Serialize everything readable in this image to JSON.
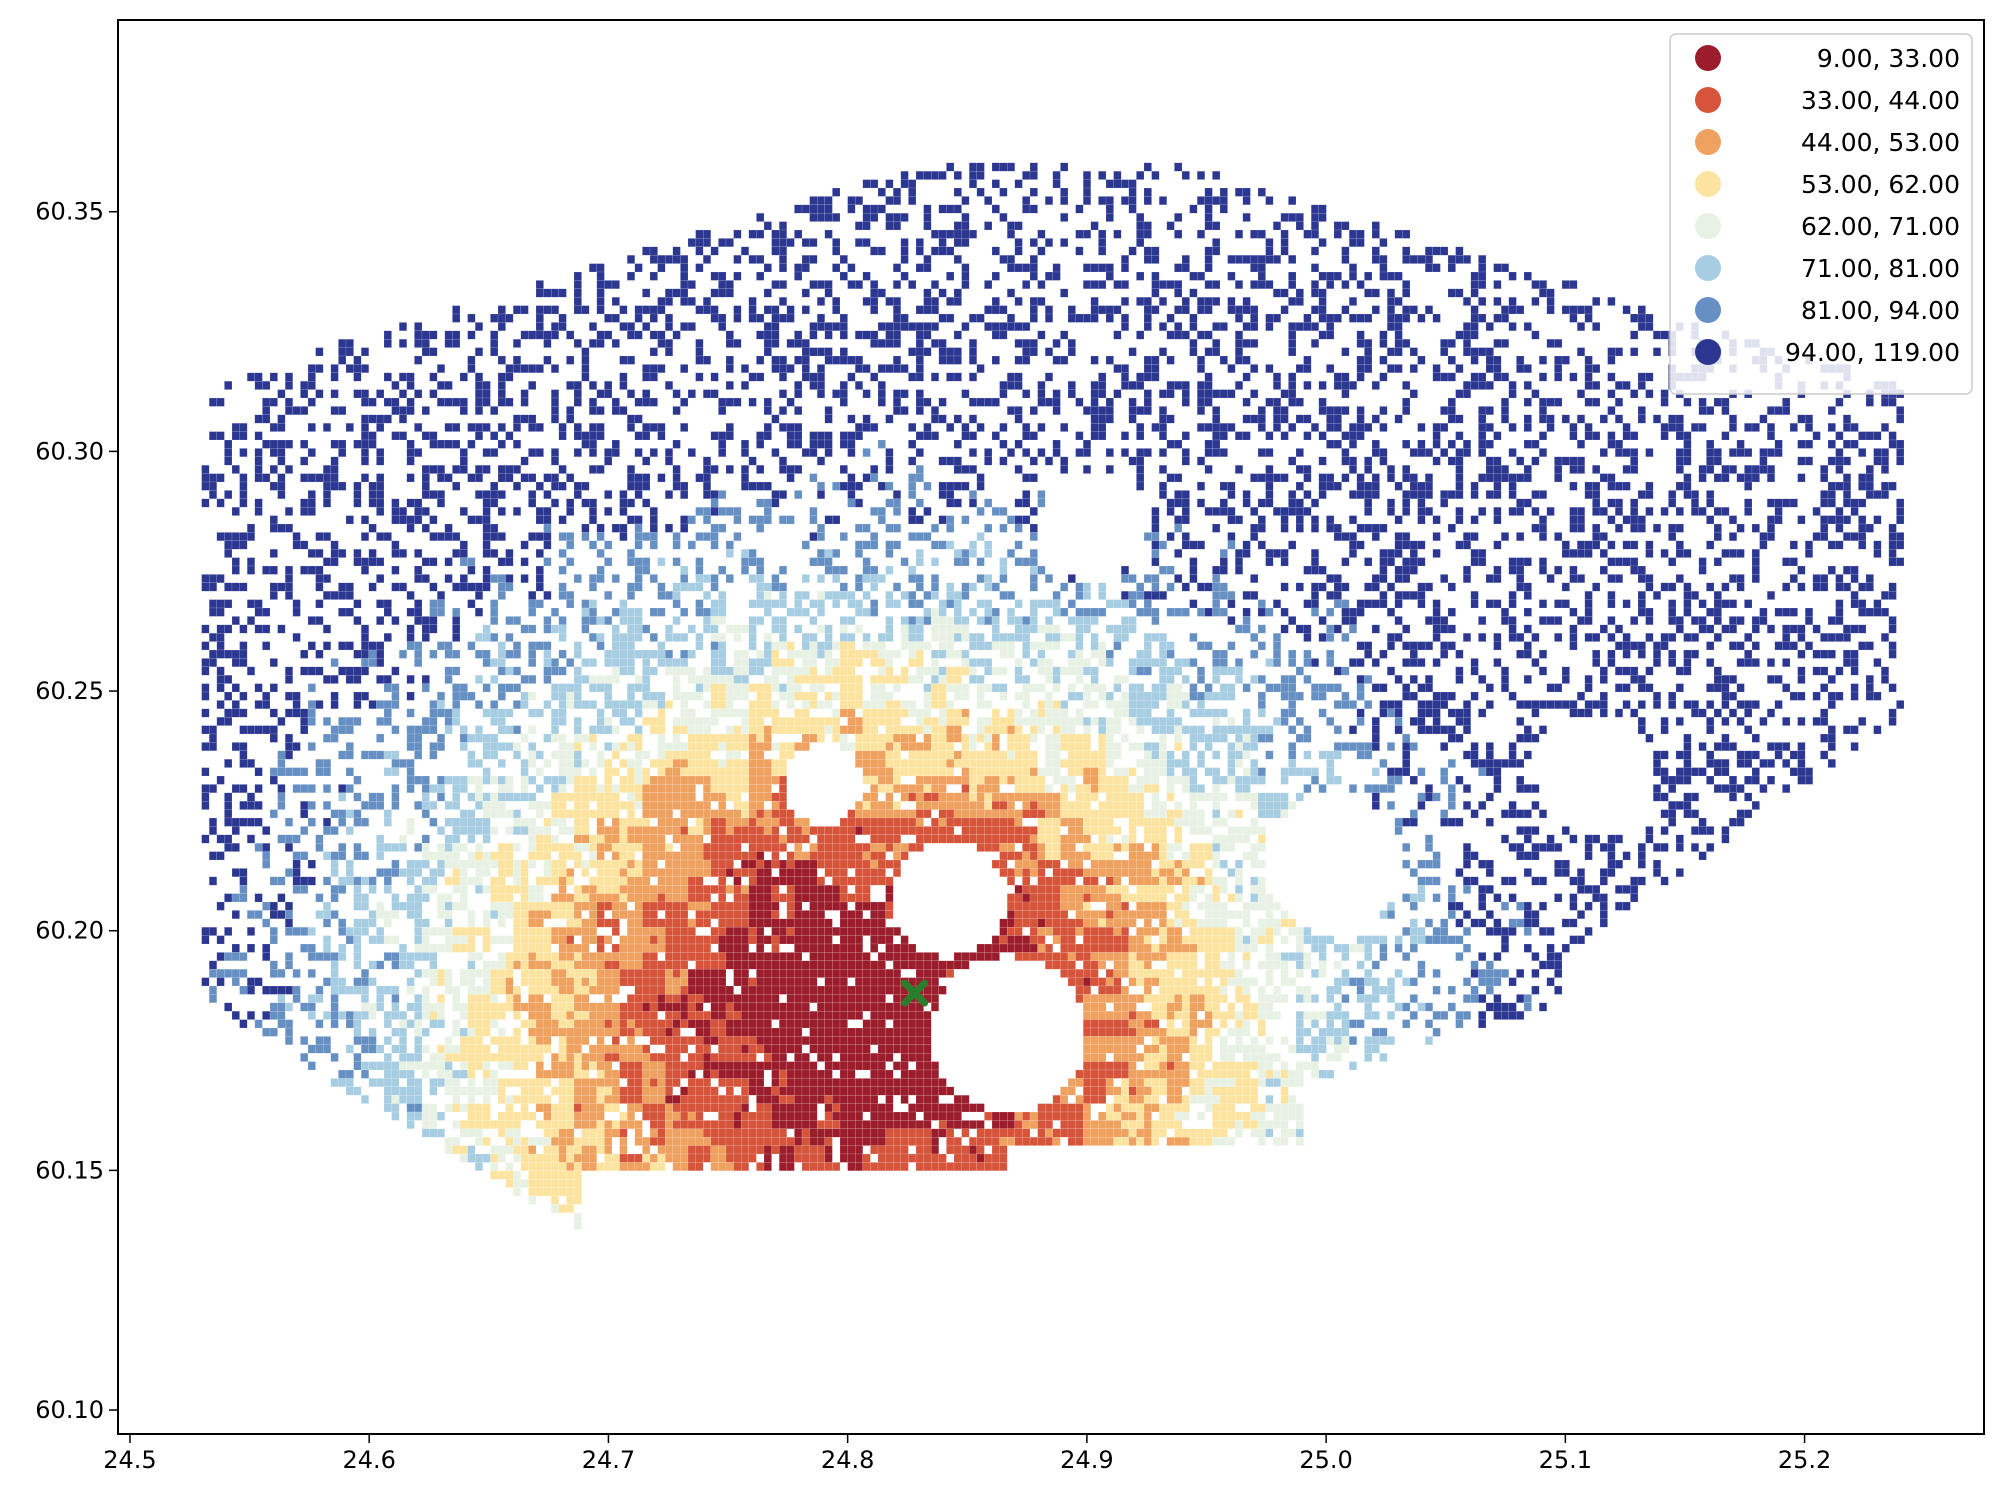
{
  "chart_data": {
    "type": "heatmap",
    "title": "",
    "xlabel": "",
    "ylabel": "",
    "xlim": [
      24.495,
      25.275
    ],
    "ylim": [
      60.095,
      60.39
    ],
    "x_ticks": [
      "24.5",
      "24.6",
      "24.7",
      "24.8",
      "24.9",
      "25.0",
      "25.1",
      "25.2"
    ],
    "y_ticks": [
      "60.10",
      "60.15",
      "60.20",
      "60.25",
      "60.30",
      "60.35"
    ],
    "grid": false,
    "legend_position": "top-right",
    "legend": [
      {
        "label": "  9.00,  33.00",
        "color": "#9b1d2c"
      },
      {
        "label": "33.00,  44.00",
        "color": "#d6543a"
      },
      {
        "label": "44.00,  53.00",
        "color": "#efa15f"
      },
      {
        "label": "53.00,  62.00",
        "color": "#fce4a0"
      },
      {
        "label": "62.00,  71.00",
        "color": "#e8f2e4"
      },
      {
        "label": "71.00,  81.00",
        "color": "#a7cde2"
      },
      {
        "label": "81.00,  94.00",
        "color": "#6690c3"
      },
      {
        "label": "94.00, 119.00",
        "color": "#2b3790"
      }
    ],
    "marker": {
      "x": 24.828,
      "y": 60.187,
      "symbol": "X",
      "color": "#2a7d2a"
    }
  }
}
